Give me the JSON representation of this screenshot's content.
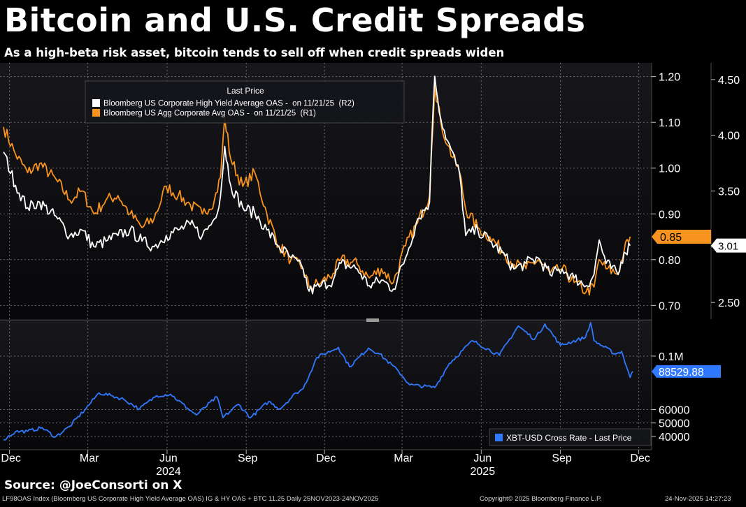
{
  "header": {
    "title": "Bitcoin and U.S. Credit Spreads",
    "subtitle": "As a high-beta risk asset, bitcoin tends to sell off when credit spreads widen"
  },
  "footer": {
    "source": "Source: @JoeConsorti on X",
    "index_info": "LF98OAS Index (Bloomberg US Corporate High Yield Average OAS) IG & HY OAS + BTC 11.25 Daily 25NOV2023-24NOV2025",
    "copyright": "Copyright© 2025 Bloomberg Finance L.P.",
    "timestamp": "24-Nov-2025 14:27:23"
  },
  "colors": {
    "background": "#000000",
    "panel": "#0c0c10",
    "hy_line": "#ffffff",
    "ig_line": "#f7931e",
    "btc_line": "#2f78ff",
    "grid": "#6b6b6b"
  },
  "chart_data": [
    {
      "type": "line",
      "legend_title": "Last Price",
      "legend_position": "top-left",
      "grid": true,
      "x_ticks": [
        "Dec",
        "Mar",
        "Jun",
        "Sep",
        "Dec",
        "Mar",
        "Jun",
        "Sep",
        "Dec"
      ],
      "x_years": [
        "2024",
        "2025"
      ],
      "right1_axis": {
        "ticks": [
          "1.20",
          "1.10",
          "1.00",
          "0.90",
          "0.80",
          "0.70"
        ],
        "range": [
          0.67,
          1.23
        ]
      },
      "right2_axis": {
        "ticks": [
          "4.50",
          "4.00",
          "3.50",
          "3.00",
          "2.50"
        ],
        "range": [
          2.35,
          4.65
        ]
      },
      "series": [
        {
          "name": "Bloomberg US Corporate High Yield Average OAS -  on 11/21/25  (R2)",
          "axis": "R2",
          "last_label": "3.01",
          "points": [
            [
              "2023-11-24",
              3.85
            ],
            [
              "2023-12-08",
              3.55
            ],
            [
              "2023-12-22",
              3.35
            ],
            [
              "2024-01-05",
              3.4
            ],
            [
              "2024-01-26",
              3.25
            ],
            [
              "2024-02-09",
              3.1
            ],
            [
              "2024-02-23",
              3.15
            ],
            [
              "2024-03-08",
              3.0
            ],
            [
              "2024-03-22",
              3.05
            ],
            [
              "2024-04-05",
              3.1
            ],
            [
              "2024-04-19",
              3.15
            ],
            [
              "2024-05-03",
              3.05
            ],
            [
              "2024-05-17",
              3.0
            ],
            [
              "2024-05-31",
              3.1
            ],
            [
              "2024-06-14",
              3.15
            ],
            [
              "2024-06-28",
              3.2
            ],
            [
              "2024-07-12",
              3.1
            ],
            [
              "2024-07-26",
              3.25
            ],
            [
              "2024-08-02",
              3.45
            ],
            [
              "2024-08-07",
              3.9
            ],
            [
              "2024-08-14",
              3.55
            ],
            [
              "2024-08-28",
              3.35
            ],
            [
              "2024-09-11",
              3.3
            ],
            [
              "2024-09-25",
              3.15
            ],
            [
              "2024-10-09",
              3.0
            ],
            [
              "2024-10-23",
              2.9
            ],
            [
              "2024-11-06",
              2.8
            ],
            [
              "2024-11-13",
              2.6
            ],
            [
              "2024-11-27",
              2.65
            ],
            [
              "2024-12-11",
              2.7
            ],
            [
              "2024-12-20",
              2.85
            ],
            [
              "2025-01-08",
              2.8
            ],
            [
              "2025-01-22",
              2.65
            ],
            [
              "2025-02-05",
              2.7
            ],
            [
              "2025-02-19",
              2.62
            ],
            [
              "2025-03-05",
              2.9
            ],
            [
              "2025-03-19",
              3.25
            ],
            [
              "2025-04-02",
              3.4
            ],
            [
              "2025-04-04",
              3.85
            ],
            [
              "2025-04-08",
              4.53
            ],
            [
              "2025-04-15",
              4.15
            ],
            [
              "2025-04-23",
              3.95
            ],
            [
              "2025-05-07",
              3.65
            ],
            [
              "2025-05-14",
              3.1
            ],
            [
              "2025-05-28",
              3.15
            ],
            [
              "2025-06-11",
              3.05
            ],
            [
              "2025-06-25",
              2.95
            ],
            [
              "2025-07-09",
              2.8
            ],
            [
              "2025-07-23",
              2.85
            ],
            [
              "2025-08-06",
              2.9
            ],
            [
              "2025-08-20",
              2.75
            ],
            [
              "2025-09-03",
              2.8
            ],
            [
              "2025-09-17",
              2.72
            ],
            [
              "2025-10-01",
              2.65
            ],
            [
              "2025-10-10",
              2.75
            ],
            [
              "2025-10-16",
              3.06
            ],
            [
              "2025-10-24",
              2.85
            ],
            [
              "2025-11-07",
              2.75
            ],
            [
              "2025-11-14",
              2.95
            ],
            [
              "2025-11-21",
              3.01
            ]
          ]
        },
        {
          "name": "Bloomberg US Agg Corporate Avg OAS -  on 11/21/25  (R1)",
          "axis": "R1",
          "last_label": "0.85",
          "points": [
            [
              "2023-11-24",
              1.09
            ],
            [
              "2023-12-08",
              1.03
            ],
            [
              "2023-12-22",
              0.99
            ],
            [
              "2024-01-05",
              1.01
            ],
            [
              "2024-01-26",
              0.97
            ],
            [
              "2024-02-09",
              0.93
            ],
            [
              "2024-02-23",
              0.95
            ],
            [
              "2024-03-08",
              0.9
            ],
            [
              "2024-03-22",
              0.93
            ],
            [
              "2024-04-05",
              0.94
            ],
            [
              "2024-04-19",
              0.9
            ],
            [
              "2024-05-03",
              0.87
            ],
            [
              "2024-05-17",
              0.89
            ],
            [
              "2024-05-31",
              0.96
            ],
            [
              "2024-06-14",
              0.94
            ],
            [
              "2024-06-28",
              0.92
            ],
            [
              "2024-07-12",
              0.9
            ],
            [
              "2024-07-26",
              0.93
            ],
            [
              "2024-08-02",
              0.98
            ],
            [
              "2024-08-07",
              1.11
            ],
            [
              "2024-08-14",
              1.02
            ],
            [
              "2024-08-28",
              0.96
            ],
            [
              "2024-09-11",
              0.99
            ],
            [
              "2024-09-25",
              0.9
            ],
            [
              "2024-10-09",
              0.83
            ],
            [
              "2024-10-23",
              0.8
            ],
            [
              "2024-11-06",
              0.78
            ],
            [
              "2024-11-13",
              0.74
            ],
            [
              "2024-11-27",
              0.75
            ],
            [
              "2024-12-11",
              0.77
            ],
            [
              "2024-12-20",
              0.8
            ],
            [
              "2025-01-08",
              0.79
            ],
            [
              "2025-01-22",
              0.76
            ],
            [
              "2025-02-05",
              0.78
            ],
            [
              "2025-02-19",
              0.75
            ],
            [
              "2025-03-05",
              0.83
            ],
            [
              "2025-03-19",
              0.88
            ],
            [
              "2025-04-02",
              0.94
            ],
            [
              "2025-04-04",
              1.03
            ],
            [
              "2025-04-08",
              1.18
            ],
            [
              "2025-04-15",
              1.1
            ],
            [
              "2025-04-23",
              1.05
            ],
            [
              "2025-05-07",
              0.99
            ],
            [
              "2025-05-14",
              0.91
            ],
            [
              "2025-05-28",
              0.87
            ],
            [
              "2025-06-11",
              0.85
            ],
            [
              "2025-06-25",
              0.82
            ],
            [
              "2025-07-09",
              0.79
            ],
            [
              "2025-07-23",
              0.78
            ],
            [
              "2025-08-06",
              0.8
            ],
            [
              "2025-08-20",
              0.77
            ],
            [
              "2025-09-03",
              0.78
            ],
            [
              "2025-09-17",
              0.75
            ],
            [
              "2025-10-01",
              0.73
            ],
            [
              "2025-10-10",
              0.74
            ],
            [
              "2025-10-16",
              0.8
            ],
            [
              "2025-10-24",
              0.78
            ],
            [
              "2025-11-07",
              0.77
            ],
            [
              "2025-11-14",
              0.82
            ],
            [
              "2025-11-21",
              0.85
            ]
          ]
        }
      ]
    },
    {
      "type": "line",
      "legend_position": "bottom-right",
      "grid": true,
      "right_axis": {
        "ticks": [
          "0.1M",
          "60000",
          "50000",
          "40000"
        ],
        "range": [
          30000,
          125000
        ]
      },
      "series": [
        {
          "name": "XBT-USD Cross Rate - Last Price",
          "last_label": "88529.88",
          "points": [
            [
              "2023-11-24",
              37500
            ],
            [
              "2023-12-08",
              43500
            ],
            [
              "2023-12-22",
              43800
            ],
            [
              "2024-01-08",
              46500
            ],
            [
              "2024-01-23",
              39500
            ],
            [
              "2024-02-09",
              47500
            ],
            [
              "2024-02-28",
              61000
            ],
            [
              "2024-03-14",
              72500
            ],
            [
              "2024-03-28",
              70500
            ],
            [
              "2024-04-12",
              67500
            ],
            [
              "2024-04-30",
              60500
            ],
            [
              "2024-05-20",
              70500
            ],
            [
              "2024-06-05",
              71500
            ],
            [
              "2024-06-25",
              61000
            ],
            [
              "2024-07-05",
              56000
            ],
            [
              "2024-07-29",
              69500
            ],
            [
              "2024-08-05",
              54000
            ],
            [
              "2024-08-23",
              64000
            ],
            [
              "2024-09-06",
              54000
            ],
            [
              "2024-09-27",
              66000
            ],
            [
              "2024-10-10",
              60500
            ],
            [
              "2024-10-29",
              72500
            ],
            [
              "2024-11-06",
              75500
            ],
            [
              "2024-11-22",
              99000
            ],
            [
              "2024-12-17",
              106500
            ],
            [
              "2024-12-30",
              92000
            ],
            [
              "2025-01-21",
              106000
            ],
            [
              "2025-02-03",
              101500
            ],
            [
              "2025-02-25",
              88500
            ],
            [
              "2025-03-10",
              78500
            ],
            [
              "2025-04-08",
              76500
            ],
            [
              "2025-04-25",
              94500
            ],
            [
              "2025-05-22",
              111500
            ],
            [
              "2025-06-22",
              100500
            ],
            [
              "2025-07-14",
              122500
            ],
            [
              "2025-08-02",
              112500
            ],
            [
              "2025-08-14",
              124000
            ],
            [
              "2025-09-01",
              108000
            ],
            [
              "2025-09-30",
              114000
            ],
            [
              "2025-10-06",
              125000
            ],
            [
              "2025-10-10",
              111500
            ],
            [
              "2025-11-04",
              101500
            ],
            [
              "2025-11-11",
              103500
            ],
            [
              "2025-11-21",
              84000
            ],
            [
              "2025-11-24",
              88529.88
            ]
          ]
        }
      ]
    }
  ]
}
